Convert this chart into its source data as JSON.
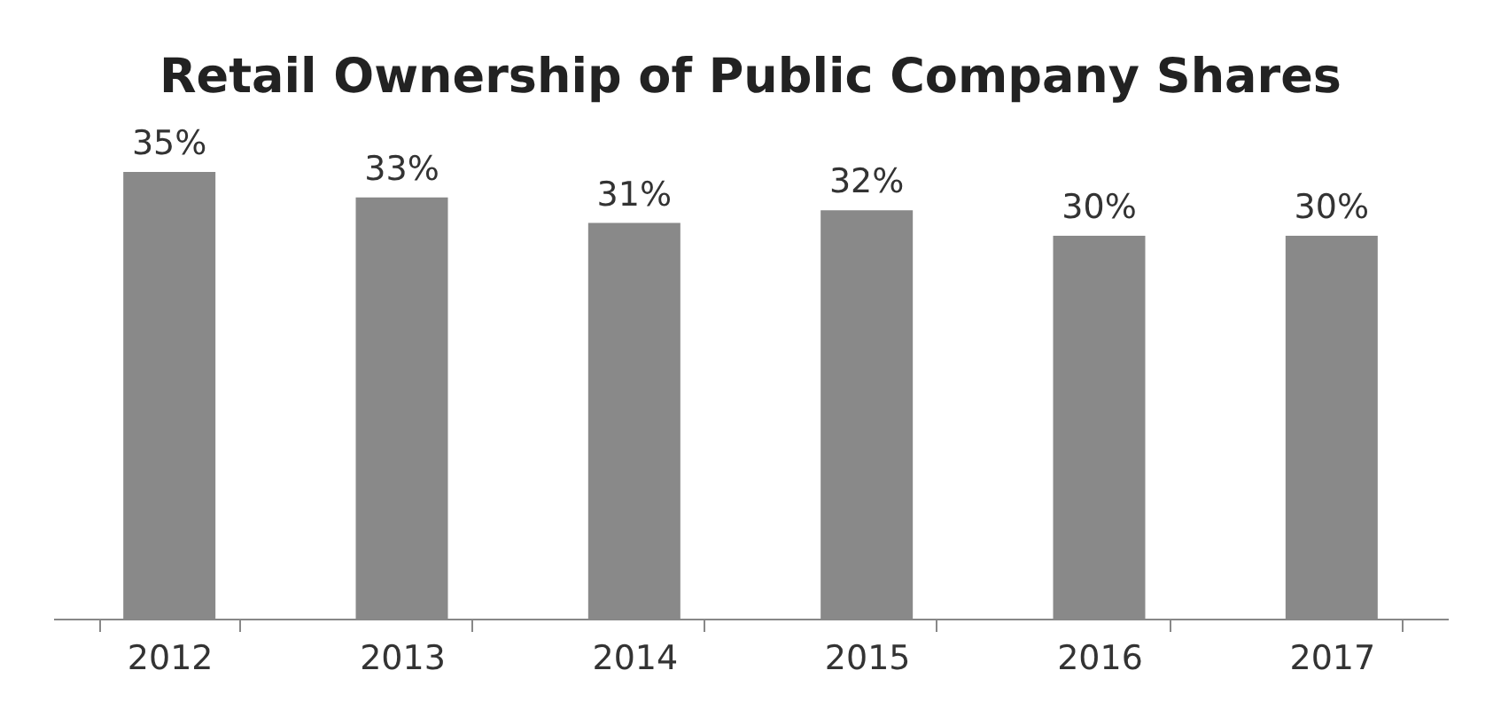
{
  "chart_data": {
    "type": "bar",
    "title": "Retail Ownership of Public Company Shares",
    "categories": [
      "2012",
      "2013",
      "2014",
      "2015",
      "2016",
      "2017"
    ],
    "values": [
      35,
      33,
      31,
      32,
      30,
      30
    ],
    "value_labels": [
      "35%",
      "33%",
      "31%",
      "32%",
      "30%",
      "30%"
    ],
    "color": "#898989",
    "tick_labels": "x",
    "grid": false
  }
}
